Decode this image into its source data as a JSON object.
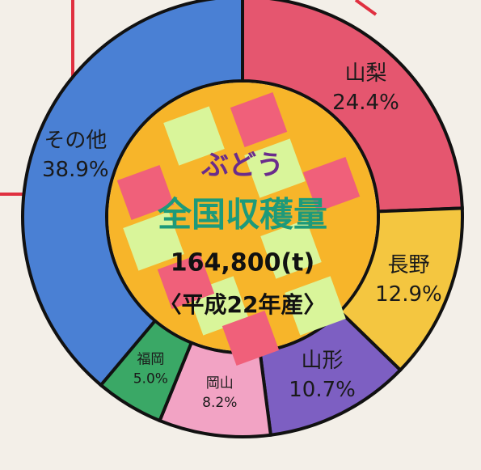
{
  "chart_data": {
    "type": "donut",
    "categories": [
      "山梨",
      "長野",
      "山形",
      "岡山",
      "福岡",
      "その他"
    ],
    "values": [
      24.4,
      12.9,
      10.7,
      8.2,
      5.0,
      38.9
    ],
    "value_labels": [
      "24.4%",
      "12.9%",
      "10.7%",
      "8.2%",
      "5.0%",
      "38.9%"
    ],
    "colors": [
      "#e5566f",
      "#f4c640",
      "#7d5fc2",
      "#f2a3c4",
      "#3aa866",
      "#4a80d4"
    ],
    "center_texts": [
      "ぶどう",
      "全国収穫量",
      "164,800(t)",
      "〈平成22年産〉"
    ]
  }
}
